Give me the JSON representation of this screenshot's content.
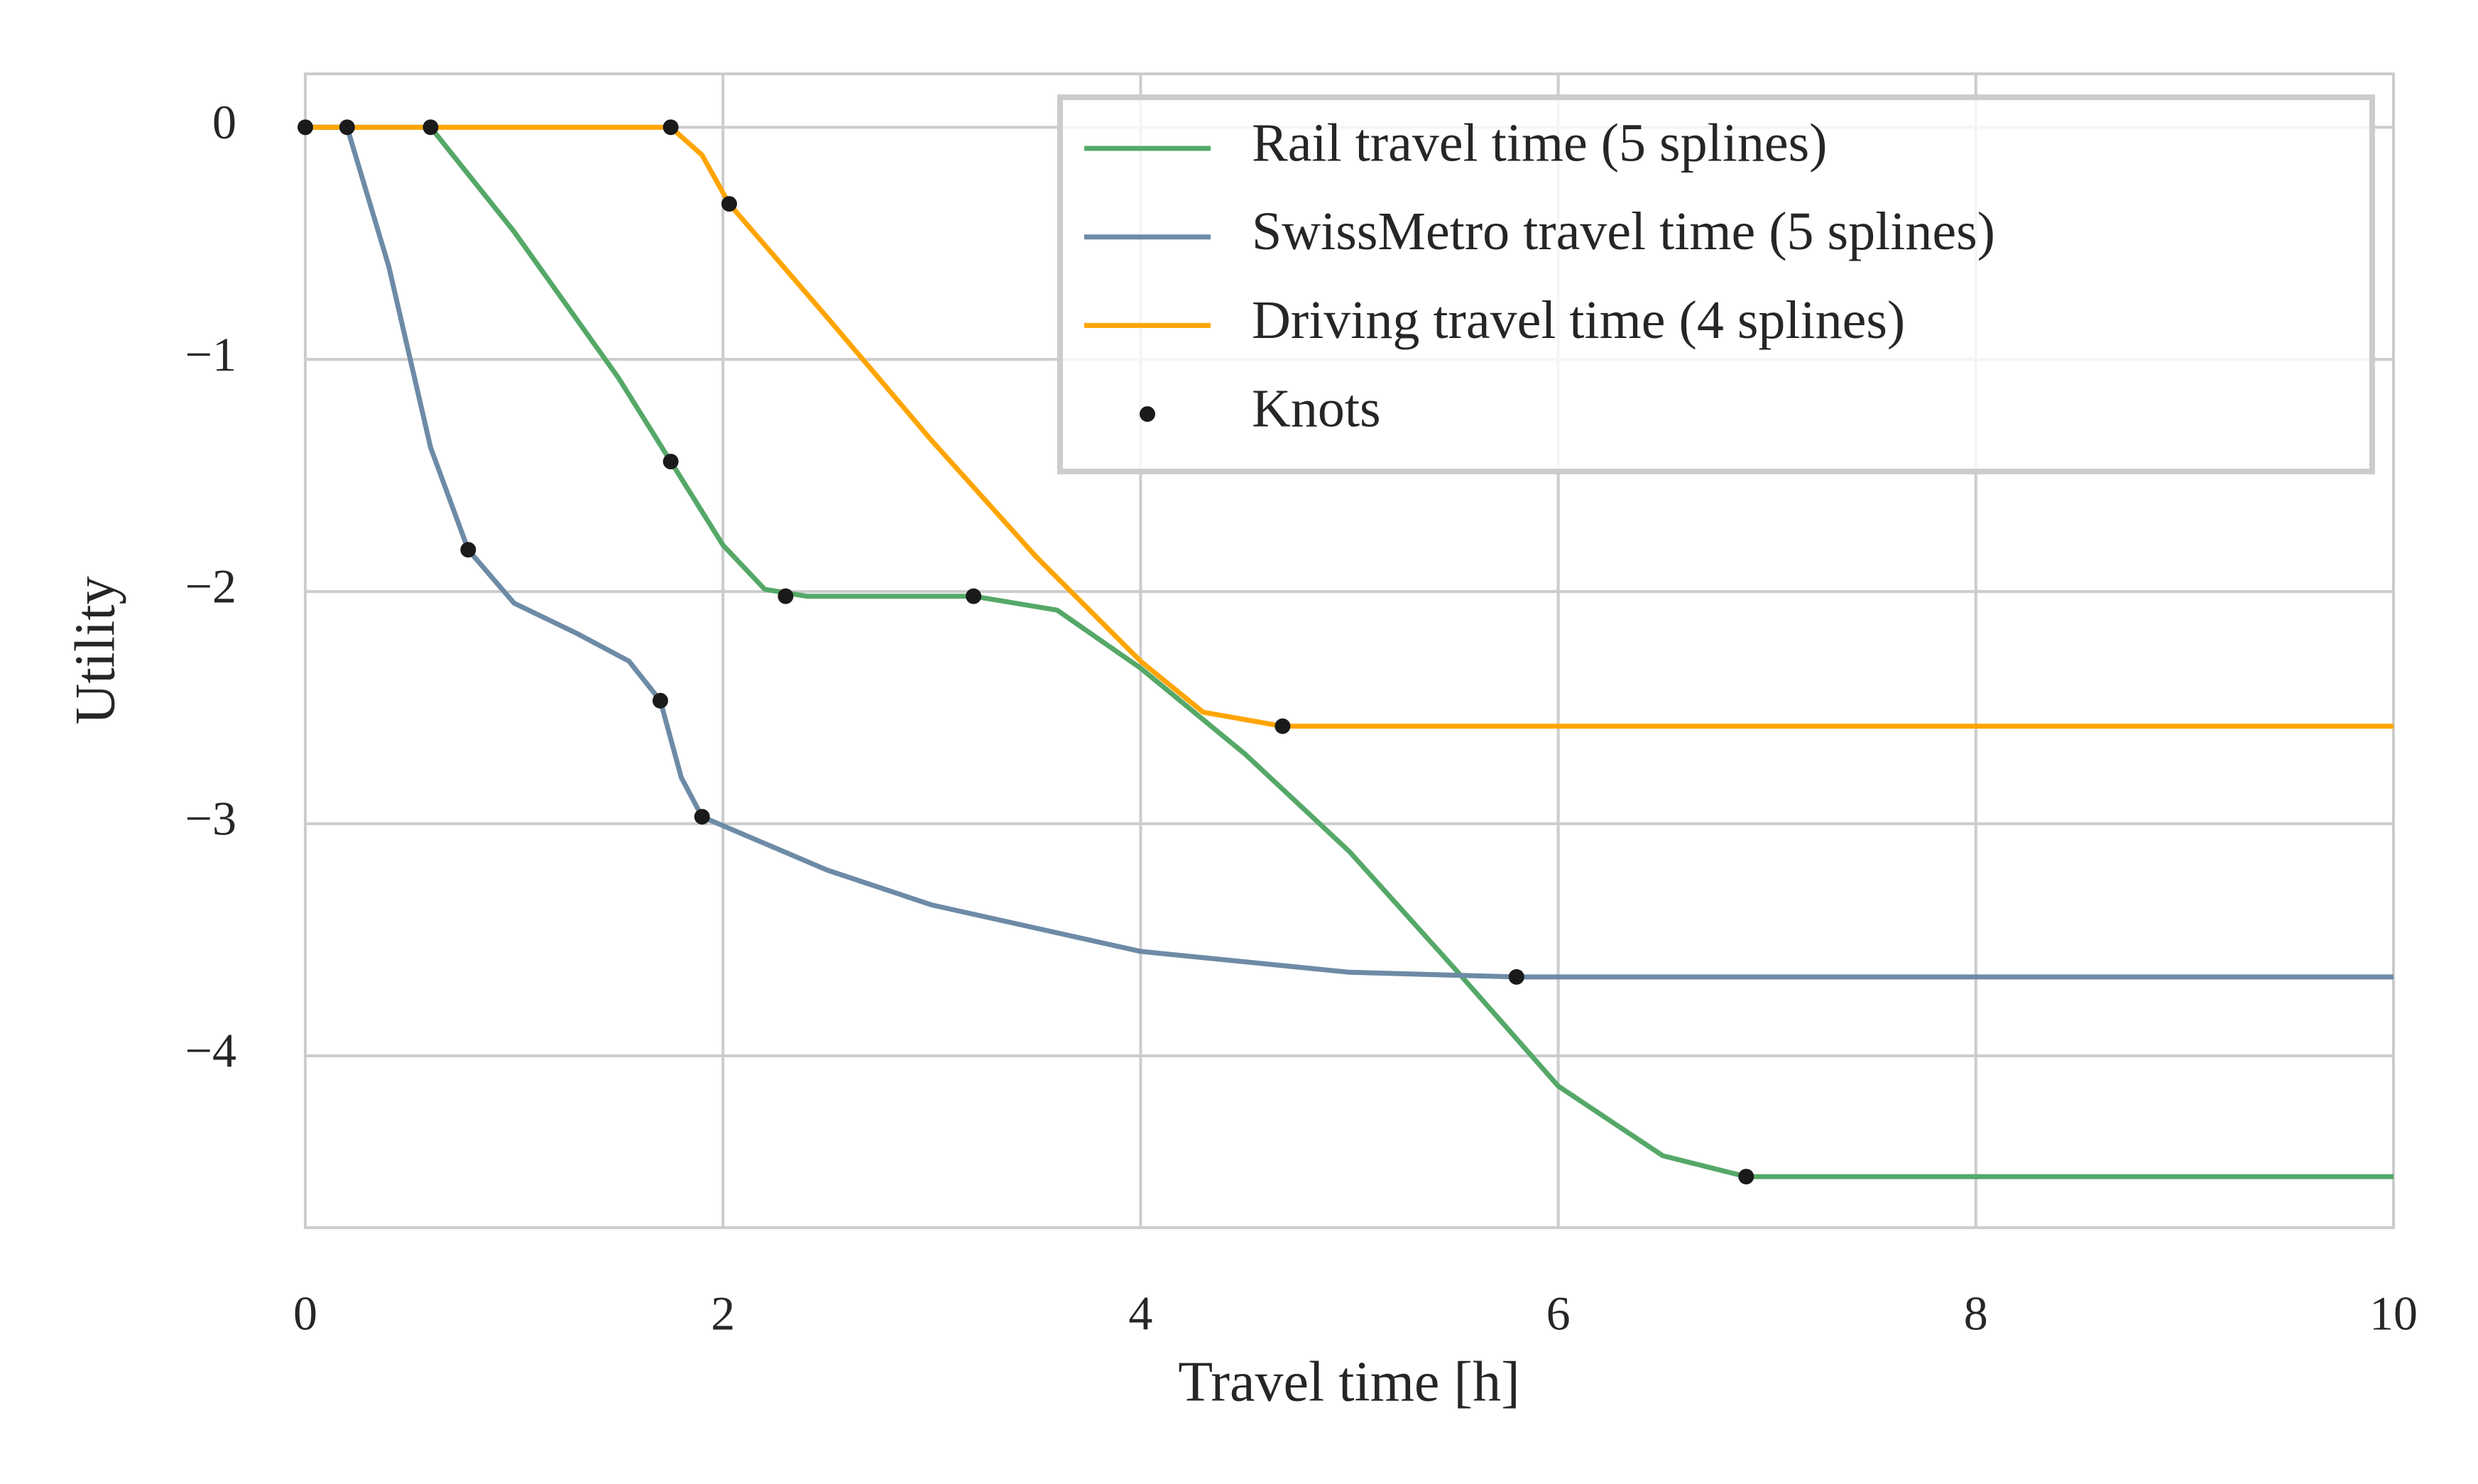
{
  "chart_data": {
    "type": "line",
    "xlabel": "Travel time [h]",
    "ylabel": "Utility",
    "xlim": [
      0,
      10
    ],
    "ylim": [
      -4.74,
      0.23
    ],
    "xticks": [
      0,
      2,
      4,
      6,
      8,
      10
    ],
    "yticks": [
      0,
      {
        "value": -1,
        "label": "−1"
      },
      {
        "value": -2,
        "label": "−2"
      },
      {
        "value": -3,
        "label": "−3"
      },
      {
        "value": -4,
        "label": "−4"
      }
    ],
    "grid": true,
    "legend": "upper right",
    "series": [
      {
        "name": "Rail travel time (5 splines)",
        "color": "#55a868",
        "type": "line",
        "x": [
          0,
          0.6,
          1.0,
          1.5,
          1.75,
          2.0,
          2.2,
          2.4,
          3.2,
          3.6,
          4.0,
          4.5,
          5.0,
          5.5,
          6.0,
          6.5,
          6.9,
          10
        ],
        "values": [
          0,
          0,
          -0.45,
          -1.08,
          -1.44,
          -1.8,
          -1.99,
          -2.02,
          -2.02,
          -2.08,
          -2.33,
          -2.7,
          -3.12,
          -3.62,
          -4.13,
          -4.43,
          -4.52,
          -4.52
        ]
      },
      {
        "name": "SwissMetro travel time (5 splines)",
        "color": "#6d8ba6",
        "type": "line",
        "x": [
          0,
          0.2,
          0.4,
          0.6,
          0.78,
          1.0,
          1.3,
          1.55,
          1.7,
          1.8,
          1.9,
          2.5,
          3.0,
          4.0,
          5.0,
          5.8,
          10
        ],
        "values": [
          0,
          0,
          -0.6,
          -1.38,
          -1.82,
          -2.05,
          -2.18,
          -2.3,
          -2.47,
          -2.8,
          -2.97,
          -3.2,
          -3.35,
          -3.55,
          -3.64,
          -3.66,
          -3.66
        ]
      },
      {
        "name": "Driving travel time (4 splines)",
        "color": "#ffa500",
        "type": "line",
        "x": [
          0,
          1.75,
          1.9,
          2.03,
          2.5,
          3.0,
          3.5,
          4.0,
          4.3,
          4.68,
          10
        ],
        "values": [
          0,
          0,
          -0.12,
          -0.33,
          -0.82,
          -1.35,
          -1.85,
          -2.3,
          -2.52,
          -2.58,
          -2.58
        ]
      },
      {
        "name": "Knots",
        "color": "#1a1a1a",
        "type": "scatter",
        "x": [
          0,
          0.2,
          0.6,
          1.75,
          2.03,
          0.78,
          1.75,
          1.7,
          2.3,
          3.2,
          1.9,
          4.68,
          5.8,
          6.9
        ],
        "values": [
          0,
          0,
          0,
          0,
          -0.33,
          -1.82,
          -1.44,
          -2.47,
          -2.02,
          -2.02,
          -2.97,
          -2.58,
          -3.66,
          -4.52
        ]
      }
    ]
  }
}
